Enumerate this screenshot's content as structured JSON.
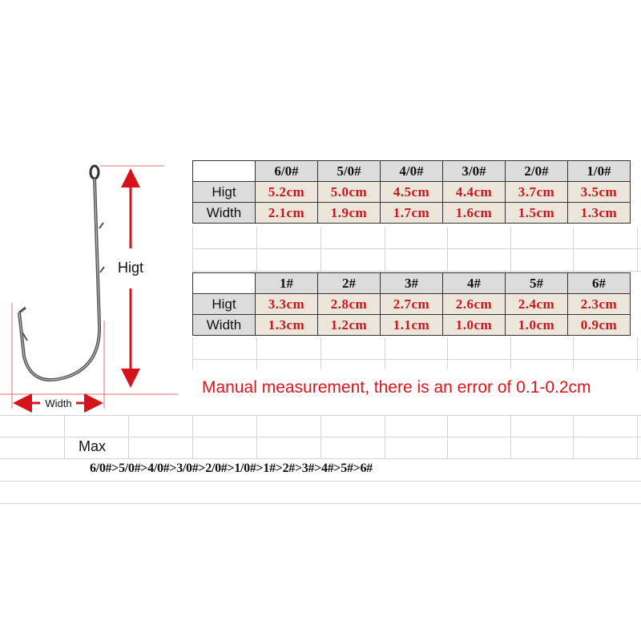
{
  "diagram": {
    "height_label": "Higt",
    "width_label": "Width",
    "arrow_color": "#d4141a"
  },
  "table1": {
    "headers": [
      "6/0#",
      "5/0#",
      "4/0#",
      "3/0#",
      "2/0#",
      "1/0#"
    ],
    "rows": [
      {
        "label": "Higt",
        "values": [
          "5.2cm",
          "5.0cm",
          "4.5cm",
          "4.4cm",
          "3.7cm",
          "3.5cm"
        ]
      },
      {
        "label": "Width",
        "values": [
          "2.1cm",
          "1.9cm",
          "1.7cm",
          "1.6cm",
          "1.5cm",
          "1.3cm"
        ]
      }
    ]
  },
  "table2": {
    "headers": [
      "1#",
      "2#",
      "3#",
      "4#",
      "5#",
      "6#"
    ],
    "rows": [
      {
        "label": "Higt",
        "values": [
          "3.3cm",
          "2.8cm",
          "2.7cm",
          "2.6cm",
          "2.4cm",
          "2.3cm"
        ]
      },
      {
        "label": "Width",
        "values": [
          "1.3cm",
          "1.2cm",
          "1.1cm",
          "1.0cm",
          "1.0cm",
          "0.9cm"
        ]
      }
    ]
  },
  "note": "Manual measurement, there is an error of 0.1-0.2cm",
  "max_label": "Max",
  "size_order": "6/0#>5/0#>4/0#>3/0#>2/0#>1/0#>1#>2#>3#>4#>5#>6#",
  "colors": {
    "value_text": "#c8161d",
    "note_text": "#e0141a",
    "header_bg": "#dcdcdc",
    "value_bg": "#ebe5da"
  }
}
